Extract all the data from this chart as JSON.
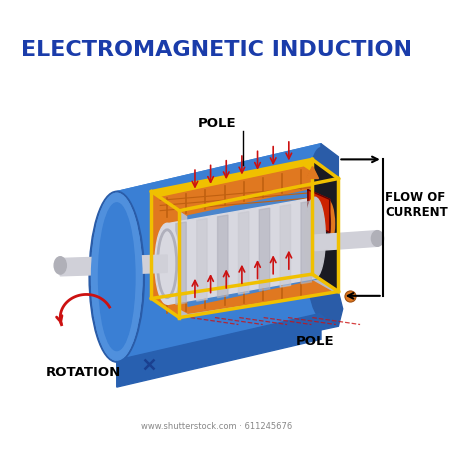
{
  "title": "ELECTROMAGNETIC INDUCTION",
  "title_color": "#1a3caa",
  "title_fontsize": 16,
  "bg_color": "#ffffff",
  "label_pole_top": "POLE",
  "label_pole_bottom": "POLE",
  "label_flow": "FLOW OF\nCURRENT",
  "label_rotation": "ROTATION",
  "blue_main": "#3a7fd4",
  "blue_dark": "#2a5ca8",
  "blue_light": "#5090dd",
  "blue_bottom": "#2860b0",
  "yellow": "#f0c000",
  "orange": "#e07820",
  "orange_dark": "#c06010",
  "silver_light": "#d8d8e0",
  "silver_mid": "#b0b0bc",
  "silver_dark": "#888898",
  "shaft_color": "#d0d0d8",
  "red": "#cc1111",
  "black": "#111111",
  "red_box": "#cc2200",
  "watermark": "www.shutterstock.com · 611245676"
}
